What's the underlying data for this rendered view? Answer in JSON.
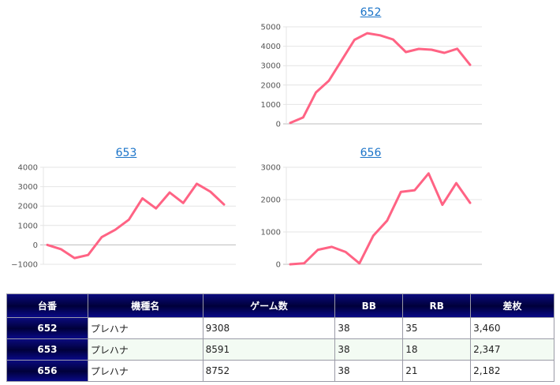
{
  "charts": [
    {
      "title": "652",
      "color": "#ff6384",
      "chart_data": {
        "type": "line",
        "ylim": [
          0,
          5000
        ],
        "yticks": [
          0,
          1000,
          2000,
          3000,
          4000,
          5000
        ],
        "ytick_labels": [
          "0",
          "1000",
          "2000",
          "3000",
          "4000",
          "5000"
        ],
        "values": [
          50,
          330,
          1620,
          2220,
          3270,
          4330,
          4670,
          4560,
          4350,
          3700,
          3860,
          3820,
          3660,
          3870,
          3040
        ]
      }
    },
    {
      "title": "653",
      "color": "#ff6384",
      "chart_data": {
        "type": "line",
        "ylim": [
          -1000,
          4000
        ],
        "yticks": [
          -1000,
          0,
          1000,
          2000,
          3000,
          4000
        ],
        "ytick_labels": [
          "−1000",
          "0",
          "1000",
          "2000",
          "3000",
          "4000"
        ],
        "values": [
          0,
          -220,
          -680,
          -520,
          400,
          780,
          1300,
          2400,
          1880,
          2700,
          2160,
          3150,
          2740,
          2080
        ]
      }
    },
    {
      "title": "656",
      "color": "#ff6384",
      "chart_data": {
        "type": "line",
        "ylim": [
          0,
          3000
        ],
        "yticks": [
          0,
          1000,
          2000,
          3000
        ],
        "ytick_labels": [
          "0",
          "1000",
          "2000",
          "3000"
        ],
        "values": [
          0,
          30,
          450,
          540,
          380,
          30,
          880,
          1350,
          2240,
          2290,
          2810,
          1840,
          2510,
          1900
        ]
      }
    }
  ],
  "table": {
    "headers": [
      "台番",
      "機種名",
      "ゲーム数",
      "BB",
      "RB",
      "差枚"
    ],
    "rows": [
      [
        "652",
        "プレハナ",
        "9308",
        "38",
        "35",
        "3,460"
      ],
      [
        "653",
        "プレハナ",
        "8591",
        "38",
        "18",
        "2,347"
      ],
      [
        "656",
        "プレハナ",
        "8752",
        "38",
        "21",
        "2,182"
      ]
    ]
  }
}
